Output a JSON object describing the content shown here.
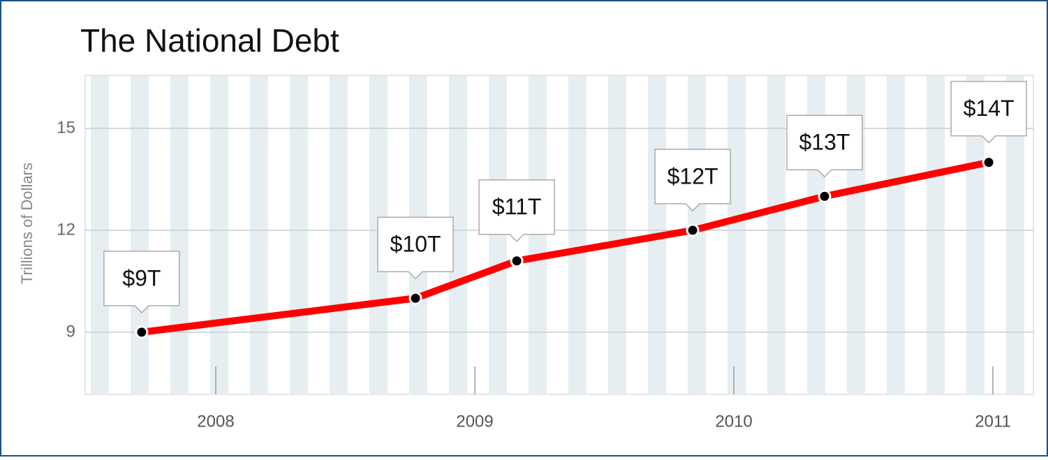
{
  "chart_data": {
    "type": "line",
    "title": "The National Debt",
    "y_label": "Trillions of Dollars",
    "x": [
      2007.714,
      2008.771,
      2009.162,
      2009.841,
      2010.35,
      2010.984
    ],
    "series": [
      {
        "name": "National Debt",
        "color": "#ff0000",
        "values": [
          9,
          10,
          11.1,
          12,
          13,
          14
        ],
        "value_labels": [
          "$9T",
          "$10T",
          "$11T",
          "$12T",
          "$13T",
          "$14T"
        ]
      }
    ],
    "xlim": [
      2007.496,
      2011.156
    ],
    "xticks": [
      2008,
      2009,
      2010,
      2011
    ],
    "ylim": [
      7.17,
      16.56
    ],
    "yticks": [
      9,
      12,
      15
    ],
    "grid": true
  }
}
